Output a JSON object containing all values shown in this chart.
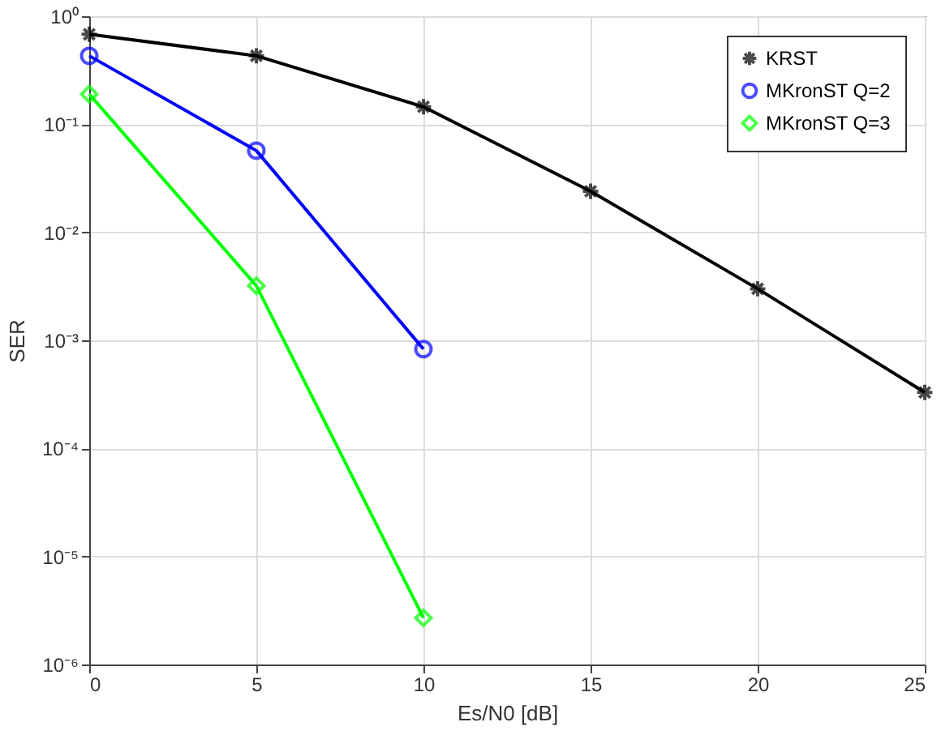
{
  "chart_data": {
    "type": "line",
    "xlabel": "Es/N0 [dB]",
    "ylabel": "SER",
    "log": "y",
    "xlim": [
      0,
      25
    ],
    "xticks": [
      0,
      5,
      10,
      15,
      20,
      25
    ],
    "ylim": [
      1e-06,
      1
    ],
    "yticks": [
      {
        "value": 1e-06,
        "label": "10⁻⁶"
      },
      {
        "value": 1e-05,
        "label": "10⁻⁵"
      },
      {
        "value": 0.0001,
        "label": "10⁻⁴"
      },
      {
        "value": 0.001,
        "label": "10⁻³"
      },
      {
        "value": 0.01,
        "label": "10⁻²"
      },
      {
        "value": 0.1,
        "label": "10⁻¹"
      },
      {
        "value": 1,
        "label": "10⁰"
      }
    ],
    "grid": true,
    "legend": "top right",
    "line_style": "solid",
    "series": [
      {
        "name": "KRST",
        "color": "#000000",
        "marker": "cross",
        "x": [
          0,
          5,
          10,
          15,
          20,
          25
        ],
        "values": [
          0.68,
          0.43,
          0.145,
          0.024,
          0.003,
          0.00033
        ]
      },
      {
        "name": "MKronST Q=2",
        "color": "#0000ff",
        "marker": "circle",
        "x": [
          0,
          5,
          10
        ],
        "values": [
          0.43,
          0.057,
          0.00083
        ]
      },
      {
        "name": "MKronST Q=3",
        "color": "#00ff00",
        "marker": "diamond",
        "x": [
          0,
          5,
          10
        ],
        "values": [
          0.19,
          0.0032,
          2.7e-06
        ]
      }
    ]
  }
}
